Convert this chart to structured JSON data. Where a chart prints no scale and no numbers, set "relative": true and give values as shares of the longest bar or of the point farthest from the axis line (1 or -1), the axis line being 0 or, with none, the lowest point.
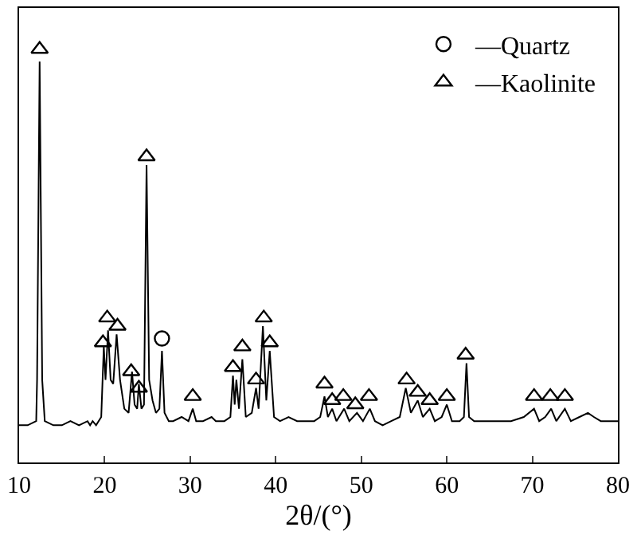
{
  "chart_data": {
    "type": "line",
    "relative": true,
    "xlabel": "2θ/(°)",
    "xlim": [
      10,
      80
    ],
    "xticks": [
      10,
      20,
      30,
      40,
      50,
      60,
      70,
      80
    ],
    "legend": "top right",
    "series": [
      {
        "color": "#000000",
        "x": [
          10,
          11,
          12,
          12.1,
          12.4,
          12.7,
          13,
          14,
          15,
          16,
          17,
          18,
          18.3,
          18.6,
          19,
          19.6,
          19.9,
          20.1,
          20.4,
          20.7,
          21.0,
          21.4,
          21.8,
          22.3,
          22.8,
          23.2,
          23.5,
          23.8,
          24.0,
          24.3,
          24.6,
          24.9,
          25.2,
          25.6,
          26.0,
          26.4,
          26.7,
          27.0,
          27.5,
          28,
          29,
          29.8,
          30.3,
          30.7,
          31.5,
          32.5,
          33,
          34,
          34.7,
          35.0,
          35.2,
          35.4,
          35.7,
          36.1,
          36.5,
          37.2,
          37.7,
          38.0,
          38.5,
          38.9,
          39.3,
          39.8,
          40.5,
          41.5,
          42.5,
          43.5,
          44.5,
          45.2,
          45.7,
          46.1,
          46.6,
          47.1,
          48.0,
          48.6,
          49.5,
          50.2,
          51.0,
          51.6,
          52.5,
          53.5,
          54.5,
          55.2,
          55.8,
          56.6,
          57.2,
          58.0,
          58.6,
          59.4,
          60.0,
          60.6,
          61.5,
          62.0,
          62.3,
          62.6,
          63.2,
          64.5,
          66,
          67.5,
          69,
          70.2,
          70.8,
          71.5,
          72.2,
          72.8,
          73.8,
          74.5,
          75.5,
          76.5,
          77.2,
          78,
          79,
          80
        ],
        "values": [
          0.09,
          0.09,
          0.1,
          0.2,
          0.97,
          0.2,
          0.1,
          0.09,
          0.09,
          0.1,
          0.09,
          0.1,
          0.09,
          0.1,
          0.09,
          0.11,
          0.28,
          0.2,
          0.32,
          0.2,
          0.19,
          0.31,
          0.2,
          0.13,
          0.12,
          0.22,
          0.14,
          0.13,
          0.19,
          0.13,
          0.14,
          0.72,
          0.2,
          0.15,
          0.12,
          0.13,
          0.27,
          0.12,
          0.1,
          0.1,
          0.11,
          0.1,
          0.13,
          0.1,
          0.1,
          0.11,
          0.1,
          0.1,
          0.11,
          0.21,
          0.14,
          0.2,
          0.13,
          0.25,
          0.11,
          0.12,
          0.18,
          0.13,
          0.33,
          0.15,
          0.27,
          0.11,
          0.1,
          0.11,
          0.1,
          0.1,
          0.1,
          0.11,
          0.16,
          0.11,
          0.13,
          0.1,
          0.13,
          0.1,
          0.12,
          0.1,
          0.13,
          0.1,
          0.09,
          0.1,
          0.11,
          0.18,
          0.12,
          0.15,
          0.11,
          0.13,
          0.1,
          0.11,
          0.14,
          0.1,
          0.1,
          0.11,
          0.24,
          0.11,
          0.1,
          0.1,
          0.1,
          0.1,
          0.11,
          0.13,
          0.1,
          0.11,
          0.13,
          0.1,
          0.13,
          0.1,
          0.11,
          0.12,
          0.11,
          0.1,
          0.1,
          0.1
        ]
      },
      {
        "type": "scatter",
        "name": "—Quartz",
        "marker": "circle",
        "color": "#000000",
        "x": [
          26.7
        ],
        "values": [
          0.3
        ]
      },
      {
        "type": "scatter",
        "name": "—Kaolinite",
        "marker": "triangle",
        "color": "#000000",
        "x": [
          12.4,
          19.8,
          20.3,
          21.5,
          23.1,
          24.0,
          24.9,
          30.3,
          35.0,
          36.1,
          37.7,
          38.6,
          39.3,
          45.7,
          46.6,
          47.9,
          49.3,
          50.9,
          55.3,
          56.6,
          58.0,
          60.0,
          62.2,
          70.2,
          72.1,
          73.8
        ],
        "values": [
          1.0,
          0.29,
          0.35,
          0.33,
          0.22,
          0.18,
          0.74,
          0.16,
          0.23,
          0.28,
          0.2,
          0.35,
          0.29,
          0.19,
          0.15,
          0.16,
          0.14,
          0.16,
          0.2,
          0.17,
          0.15,
          0.16,
          0.26,
          0.16,
          0.16,
          0.16
        ]
      }
    ]
  }
}
